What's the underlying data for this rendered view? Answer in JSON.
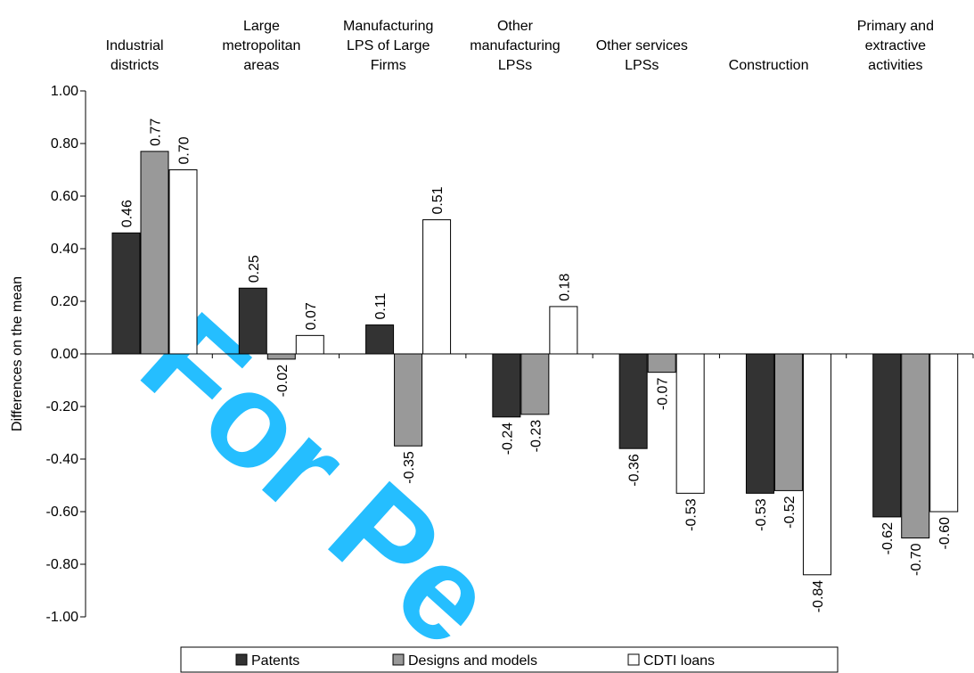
{
  "chart_data": {
    "type": "bar",
    "categories": [
      [
        "Industrial",
        "districts"
      ],
      [
        "Large",
        "metropolitan",
        "areas"
      ],
      [
        "Manufacturing",
        "LPS of Large",
        "Firms"
      ],
      [
        "Other",
        "manufacturing",
        "LPSs"
      ],
      [
        "Other services",
        "LPSs"
      ],
      [
        "Construction"
      ],
      [
        "Primary and",
        "extractive",
        "activities"
      ]
    ],
    "series": [
      {
        "name": "Patents",
        "color": "#333333",
        "values": [
          0.46,
          0.25,
          0.11,
          -0.24,
          -0.36,
          -0.53,
          -0.62
        ]
      },
      {
        "name": "Designs and models",
        "color": "#999999",
        "values": [
          0.77,
          -0.02,
          -0.35,
          -0.23,
          -0.07,
          -0.52,
          -0.7
        ]
      },
      {
        "name": "CDTI loans",
        "color": "#ffffff",
        "values": [
          0.7,
          0.07,
          0.51,
          0.18,
          -0.53,
          -0.84,
          -0.6
        ]
      }
    ],
    "ylabel": "Differences on the mean",
    "xlabel": "",
    "ylim": [
      -1.0,
      1.0
    ],
    "yticks": [
      "1.00",
      "0.80",
      "0.60",
      "0.40",
      "0.20",
      "0.00",
      "-0.20",
      "-0.40",
      "-0.60",
      "-0.80",
      "-1.00"
    ],
    "data_labels": [
      [
        "0.46",
        "0.25",
        "0.11",
        "-0.24",
        "-0.36",
        "-0.53",
        "-0.62"
      ],
      [
        "0.77",
        "-0.02",
        "-0.35",
        "-0.23",
        "-0.07",
        "-0.52",
        "-0.70"
      ],
      [
        "0.70",
        "0.07",
        "0.51",
        "0.18",
        "-0.53",
        "-0.84",
        "-0.60"
      ]
    ],
    "legend_position": "bottom",
    "grid": false
  },
  "watermark": {
    "text": "For Pe",
    "color": "#00b3ff"
  }
}
